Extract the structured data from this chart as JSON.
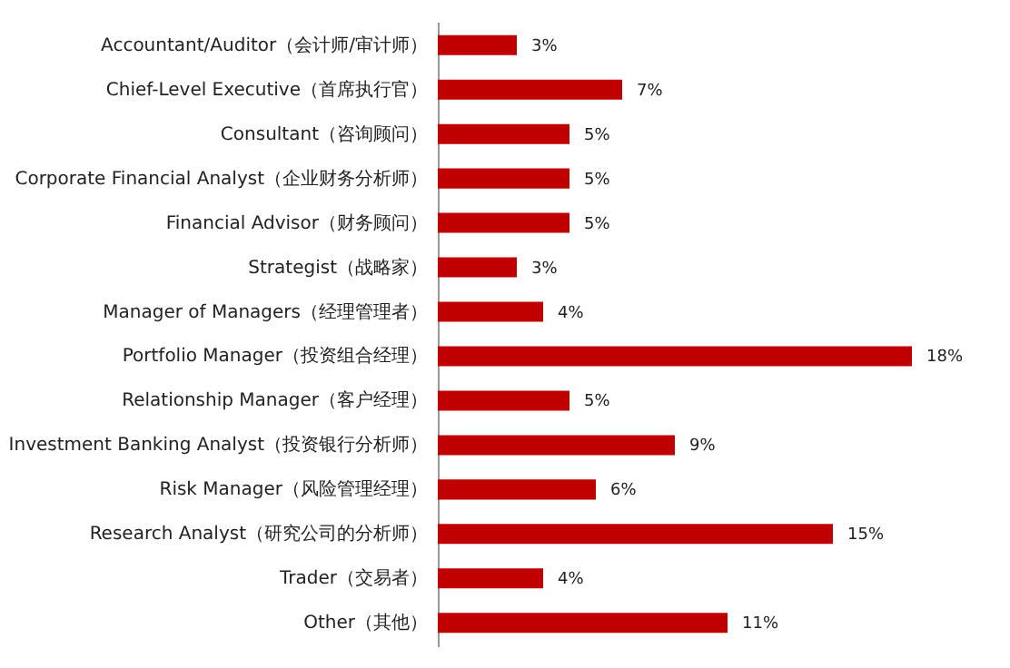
{
  "chart_data": {
    "type": "bar",
    "orientation": "horizontal",
    "categories": [
      "Accountant/Auditor（会计师/审计师）",
      "Chief-Level Executive（首席执行官）",
      "Consultant（咨询顾问）",
      "Corporate Financial Analyst（企业财务分析师）",
      "Financial Advisor（财务顾问）",
      "Strategist（战略家）",
      "Manager of Managers（经理管理者）",
      "Portfolio Manager（投资组合经理）",
      "Relationship Manager（客户经理）",
      "Investment Banking Analyst（投资银行分析师）",
      "Risk Manager（风险管理经理）",
      "Research Analyst（研究公司的分析师）",
      "Trader（交易者）",
      "Other（其他）"
    ],
    "values": [
      3,
      7,
      5,
      5,
      5,
      3,
      4,
      18,
      5,
      9,
      6,
      15,
      4,
      11
    ],
    "value_labels": [
      "3%",
      "7%",
      "5%",
      "5%",
      "5%",
      "3%",
      "4%",
      "18%",
      "5%",
      "9%",
      "6%",
      "15%",
      "4%",
      "11%"
    ],
    "color": "#c00000"
  }
}
